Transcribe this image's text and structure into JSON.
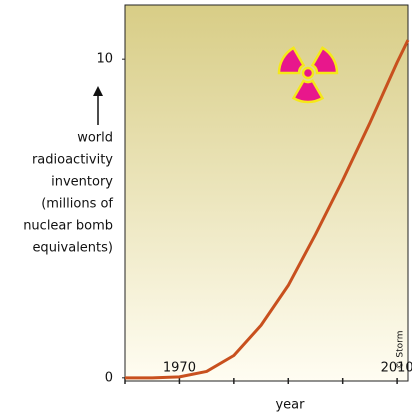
{
  "chart_data": {
    "type": "line",
    "ylabel": [
      "world",
      "radioactivity",
      "inventory",
      "(millions of",
      "nuclear bomb",
      "equivalents)"
    ],
    "xlabel": "year",
    "annotation": "© Storm",
    "x": [
      1960,
      1965,
      1970,
      1975,
      1980,
      1985,
      1990,
      1995,
      2000,
      2005,
      2010,
      2012
    ],
    "series": [
      {
        "name": "world radioactivity inventory",
        "color": "#c8501e",
        "values": [
          0,
          0,
          0.03,
          0.2,
          0.7,
          1.65,
          2.9,
          4.5,
          6.2,
          8.0,
          9.9,
          10.6
        ]
      }
    ],
    "xlim": [
      1960,
      2012
    ],
    "ylim": [
      -0.1,
      11.7
    ],
    "xticks": [
      1970,
      2010
    ],
    "xminor_ticks": [
      1960,
      1980,
      1990,
      2000
    ],
    "yticks": [
      0,
      10
    ]
  }
}
